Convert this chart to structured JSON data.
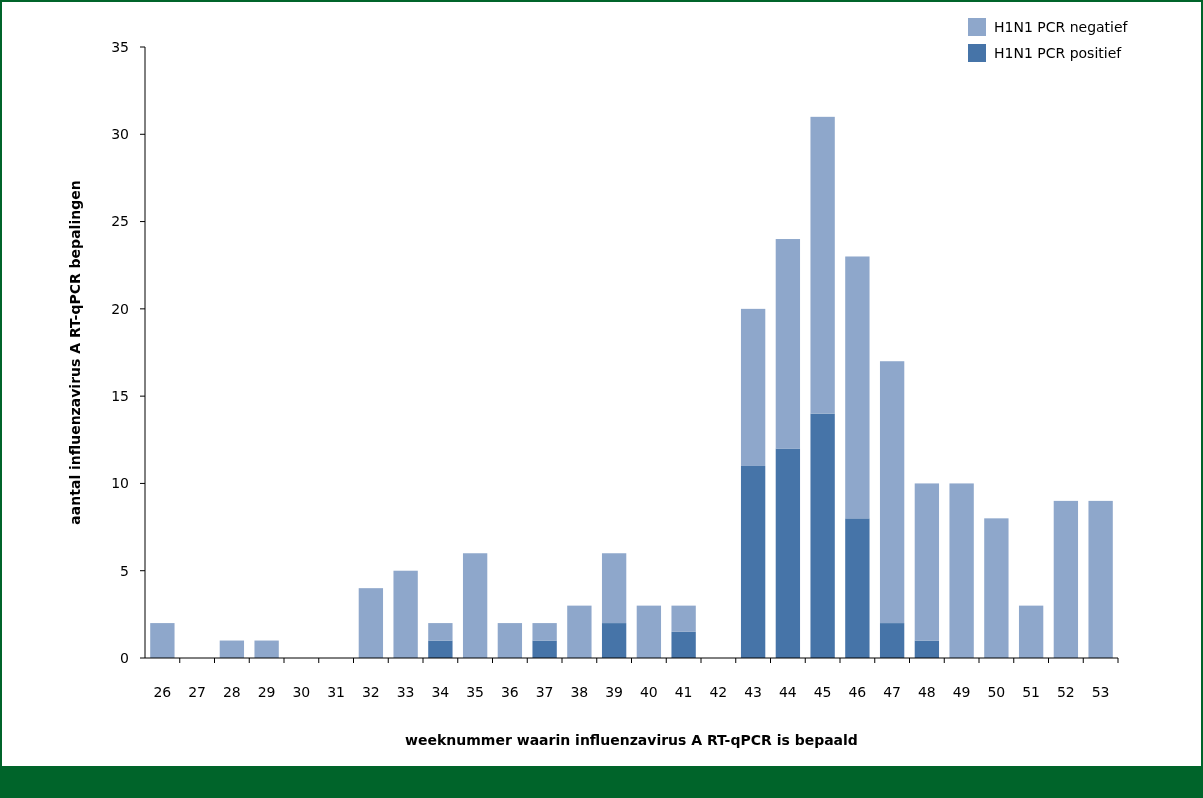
{
  "chart_data": {
    "type": "bar",
    "stacked": true,
    "xlabel": "weeknummer waarin influenzavirus A RT-qPCR is bepaald",
    "ylabel": "aantal influenzavirus A RT-qPCR bepalingen",
    "categories": [
      "26",
      "27",
      "28",
      "29",
      "30",
      "31",
      "32",
      "33",
      "34",
      "35",
      "36",
      "37",
      "38",
      "39",
      "40",
      "41",
      "42",
      "43",
      "44",
      "45",
      "46",
      "47",
      "48",
      "49",
      "50",
      "51",
      "52",
      "53"
    ],
    "series": [
      {
        "name": "H1N1 PCR positief",
        "color": "#4674a8",
        "values": [
          0,
          0,
          0,
          0,
          0,
          0,
          0,
          0,
          1,
          0,
          0,
          1,
          0,
          2,
          0,
          1.5,
          0,
          11,
          12,
          14,
          8,
          2,
          1,
          0,
          0,
          0,
          0,
          0
        ]
      },
      {
        "name": "H1N1 PCR negatief",
        "color": "#8ea7cb",
        "values": [
          2,
          0,
          1,
          1,
          0,
          0,
          4,
          5,
          1,
          6,
          2,
          1,
          3,
          4,
          3,
          1.5,
          0,
          9,
          12,
          17,
          15,
          15,
          9,
          10,
          8,
          3,
          9,
          9
        ]
      }
    ],
    "ylim": [
      0,
      35
    ],
    "yticks": [
      0,
      5,
      10,
      15,
      20,
      25,
      30,
      35
    ],
    "grid": false,
    "legend": "top right"
  }
}
